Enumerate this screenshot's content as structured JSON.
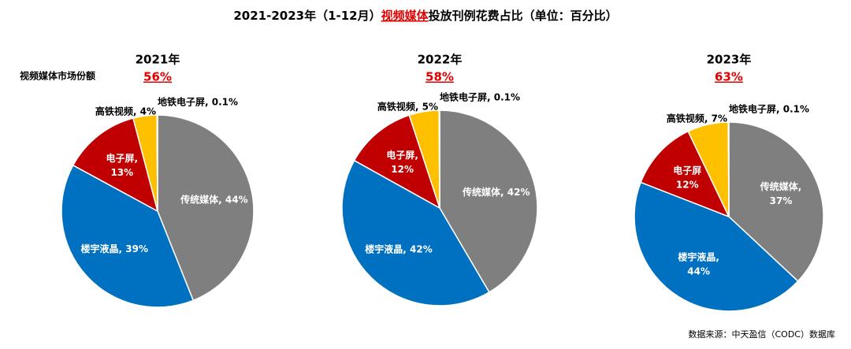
{
  "title_parts": [
    "2021-2023年（1-12月）",
    "视频媒体",
    "投放刊例花费占比（单位：百分比）"
  ],
  "side_label": "视频媒体市场份额",
  "source": "数据来源：中天盈信（CODC）数据库",
  "chart_data": [
    {
      "type": "pie",
      "title": "2021年",
      "share": 56,
      "share_label": "56%",
      "labels": [
        [
          "传统媒体, 44%"
        ],
        [
          "楼宇液晶, 39%"
        ],
        [
          "电子屏,",
          "13%"
        ],
        [
          "高铁视频, 4%"
        ],
        [
          "地铁电子屏, 0.1%"
        ]
      ],
      "values": [
        44,
        39,
        13,
        4,
        0.1
      ],
      "colors": [
        "#7f7f7f",
        "#0070c0",
        "#c00000",
        "#ffc000",
        "#ffc000"
      ]
    },
    {
      "type": "pie",
      "title": "2022年",
      "share": 58,
      "share_label": "58%",
      "labels": [
        [
          "传统媒体, 42%"
        ],
        [
          "楼宇液晶, 42%"
        ],
        [
          "电子屏,",
          "12%"
        ],
        [
          "高铁视频, 5%"
        ],
        [
          "地铁电子屏, 0.1%"
        ]
      ],
      "values": [
        42,
        42,
        12,
        5,
        0.1
      ],
      "colors": [
        "#7f7f7f",
        "#0070c0",
        "#c00000",
        "#ffc000",
        "#ffc000"
      ]
    },
    {
      "type": "pie",
      "title": "2023年",
      "share": 63,
      "share_label": "63%",
      "labels": [
        [
          "传统媒体,",
          "37%"
        ],
        [
          "楼宇液晶,",
          "44%"
        ],
        [
          "电子屏",
          "12%"
        ],
        [
          "高铁视频, 7%"
        ],
        [
          "地铁电子屏, 0.1%"
        ]
      ],
      "values": [
        37,
        44,
        12,
        7,
        0.1
      ],
      "colors": [
        "#7f7f7f",
        "#0070c0",
        "#c00000",
        "#ffc000",
        "#ffc000"
      ]
    }
  ]
}
